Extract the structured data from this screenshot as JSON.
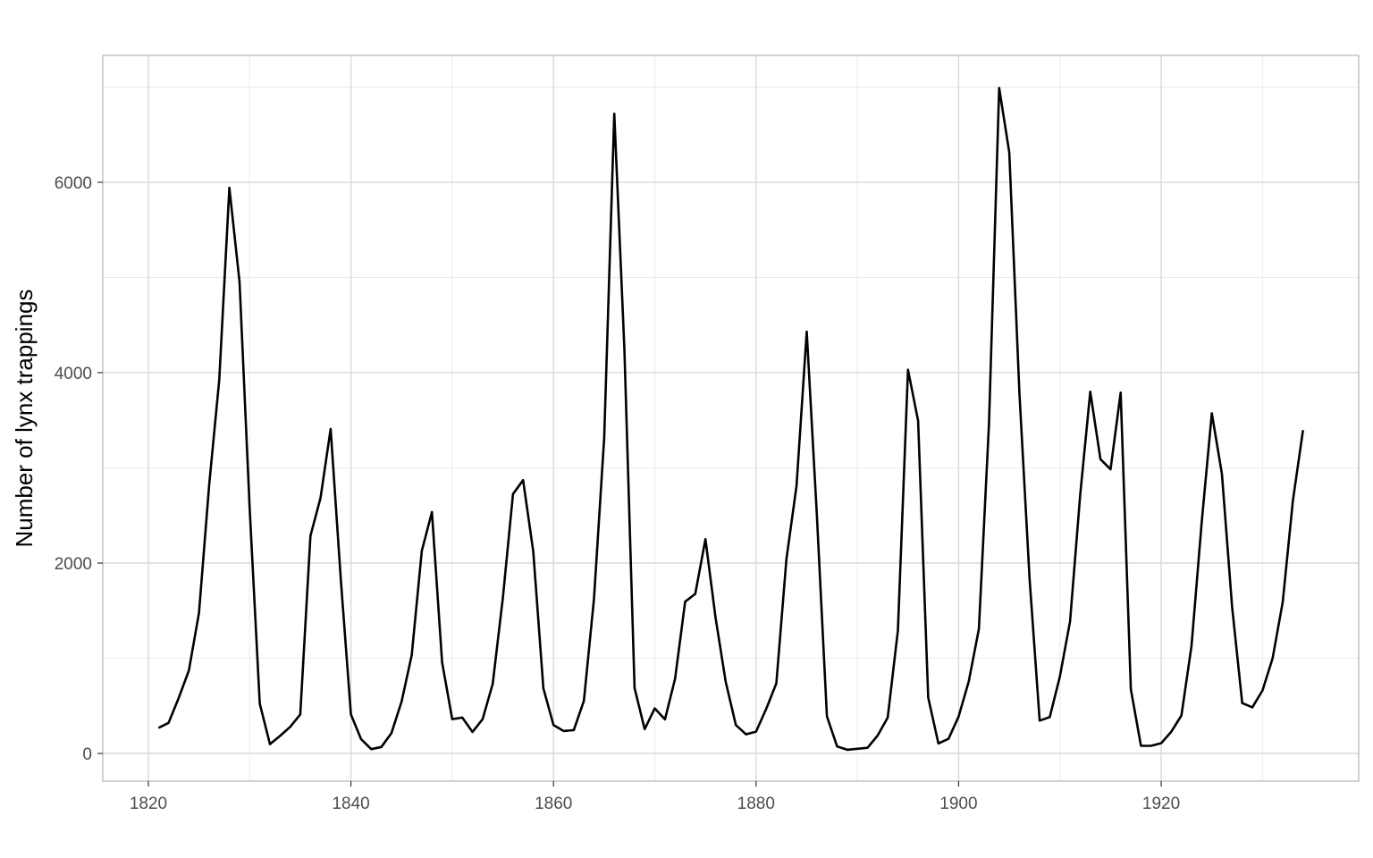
{
  "chart_data": {
    "type": "line",
    "title": "",
    "xlabel": "",
    "ylabel": "Number of lynx trappings",
    "xlim": [
      1815.5,
      1939.5
    ],
    "ylim": [
      -291,
      7333
    ],
    "x_ticks": [
      1820,
      1840,
      1860,
      1880,
      1900,
      1920
    ],
    "y_ticks": [
      0,
      2000,
      4000,
      6000
    ],
    "grid": true,
    "line_color": "#000000",
    "x_start": 1821,
    "values": [
      269,
      321,
      585,
      871,
      1475,
      2821,
      3928,
      5943,
      4950,
      2577,
      523,
      98,
      184,
      279,
      409,
      2285,
      2685,
      3409,
      1824,
      409,
      151,
      45,
      68,
      213,
      546,
      1033,
      2129,
      2536,
      957,
      361,
      377,
      225,
      360,
      731,
      1638,
      2725,
      2871,
      2119,
      684,
      299,
      236,
      245,
      552,
      1623,
      3311,
      6721,
      4254,
      687,
      255,
      473,
      358,
      784,
      1594,
      1676,
      2251,
      1426,
      756,
      299,
      201,
      229,
      469,
      736,
      2042,
      2811,
      4431,
      2511,
      389,
      73,
      39,
      49,
      59,
      188,
      377,
      1292,
      4031,
      3495,
      587,
      105,
      153,
      387,
      758,
      1307,
      3465,
      6991,
      6313,
      3794,
      1836,
      345,
      382,
      808,
      1388,
      2713,
      3800,
      3091,
      2985,
      3790,
      674,
      81,
      80,
      108,
      229,
      399,
      1132,
      2432,
      3574,
      2935,
      1537,
      529,
      485,
      662,
      1000,
      1590,
      2657,
      3396
    ]
  }
}
